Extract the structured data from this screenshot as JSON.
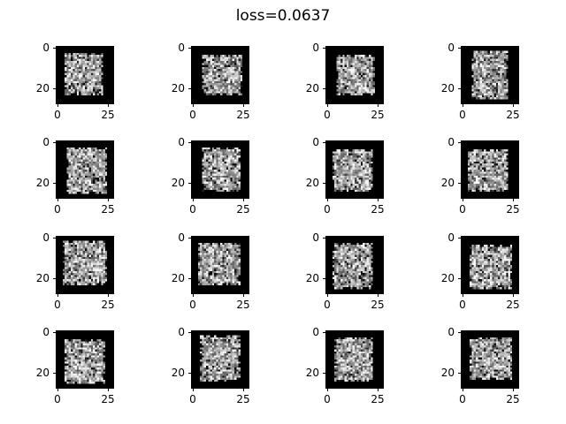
{
  "figure": {
    "title": "loss=0.0637"
  },
  "panels": {
    "rows": 4,
    "cols": 4,
    "image_size": 28,
    "colormap": "gray",
    "x_tick_labels": [
      "0",
      "25"
    ],
    "y_tick_labels": [
      "0",
      "20"
    ],
    "x_ticks": [
      0,
      25
    ],
    "y_ticks": [
      0,
      20
    ],
    "xlim": [
      -0.5,
      27.5
    ],
    "ylim": [
      27.5,
      -0.5
    ]
  },
  "colors": {
    "background": "#ffffff",
    "image_background": "#000000",
    "text": "#000000"
  }
}
